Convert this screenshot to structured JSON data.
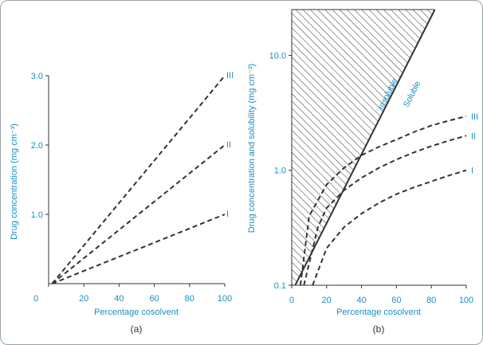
{
  "colors": {
    "accent": "#1a8fc4",
    "line": "#333333",
    "border": "#9aa3ab"
  },
  "chart_data": [
    {
      "type": "line",
      "caption": "(a)",
      "xlabel": "Percentage cosolvent",
      "ylabel": "Drug concentration (mg cm⁻³)",
      "xlim": [
        0,
        100
      ],
      "ylim": [
        0,
        3.0
      ],
      "x_ticks": [
        0,
        20,
        40,
        60,
        80,
        100
      ],
      "x_tick_labels": [
        "0",
        "20",
        "40",
        "60",
        "80",
        "100"
      ],
      "y_ticks": [
        1.0,
        2.0,
        3.0
      ],
      "y_tick_labels": [
        "1.0",
        "2.0",
        "3.0"
      ],
      "series": [
        {
          "name": "I",
          "style": "dashed",
          "x": [
            2,
            100
          ],
          "y": [
            0,
            1.0
          ]
        },
        {
          "name": "II",
          "style": "dashed",
          "x": [
            2,
            100
          ],
          "y": [
            0,
            2.0
          ]
        },
        {
          "name": "III",
          "style": "dashed",
          "x": [
            2,
            100
          ],
          "y": [
            0,
            3.0
          ]
        }
      ]
    },
    {
      "type": "line",
      "caption": "(b)",
      "xlabel": "Percentage cosolvent",
      "ylabel": "Drug concentration and solubility (mg cm⁻³)",
      "yscale": "log",
      "xlim": [
        0,
        100
      ],
      "ylim": [
        0.1,
        25
      ],
      "x_ticks": [
        0,
        20,
        40,
        60,
        80,
        100
      ],
      "x_tick_labels": [
        "0",
        "20",
        "40",
        "60",
        "80",
        "100"
      ],
      "y_ticks": [
        0.1,
        1.0,
        10.0
      ],
      "y_tick_labels": [
        "0.1",
        "1.0",
        "10.0"
      ],
      "series": [
        {
          "name": "Solubility",
          "style": "solid",
          "x": [
            2,
            82
          ],
          "y": [
            0.1,
            25
          ]
        },
        {
          "name": "I",
          "style": "dashed",
          "x": [
            12,
            20,
            30,
            40,
            50,
            60,
            70,
            80,
            90,
            100
          ],
          "y": [
            0.1,
            0.21,
            0.32,
            0.42,
            0.52,
            0.62,
            0.71,
            0.8,
            0.9,
            1.0
          ]
        },
        {
          "name": "II",
          "style": "dashed",
          "x": [
            7,
            15,
            20,
            30,
            40,
            50,
            60,
            70,
            80,
            90,
            100
          ],
          "y": [
            0.1,
            0.32,
            0.47,
            0.67,
            0.86,
            1.05,
            1.24,
            1.43,
            1.62,
            1.81,
            2.0
          ]
        },
        {
          "name": "III",
          "style": "dashed",
          "x": [
            5,
            10,
            20,
            30,
            40,
            50,
            60,
            70,
            80,
            90,
            100
          ],
          "y": [
            0.1,
            0.4,
            0.75,
            1.05,
            1.35,
            1.6,
            1.85,
            2.15,
            2.45,
            2.7,
            2.95
          ]
        }
      ],
      "regions": [
        {
          "name": "Insoluble",
          "fill": "hatched",
          "side": "above"
        },
        {
          "name": "Soluble",
          "side": "below"
        }
      ]
    }
  ]
}
